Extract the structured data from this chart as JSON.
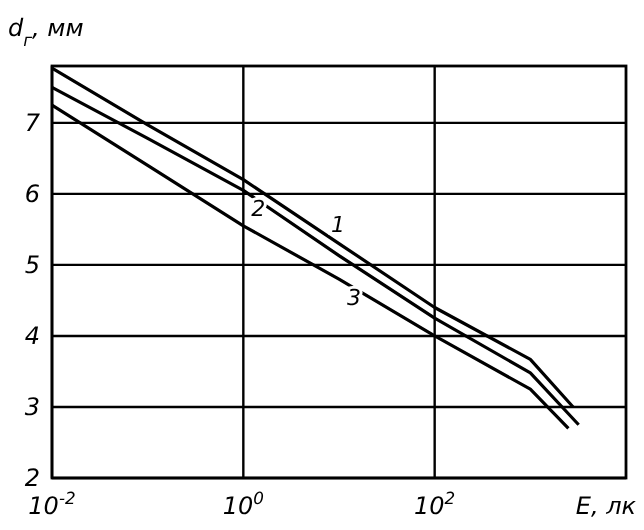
{
  "chart_data": {
    "type": "line",
    "xlabel": "E, лк",
    "ylabel": "d$_{г}$, мм",
    "log": "x",
    "grid": true,
    "marker": "none",
    "line_style": "solid",
    "xlim": [
      0.01,
      10000
    ],
    "xticks": [
      {
        "value": 0.01,
        "label": "10$^{-2}$"
      },
      {
        "value": 1,
        "label": "10$^{0}$"
      },
      {
        "value": 100,
        "label": "10$^{2}$"
      }
    ],
    "ylim": [
      2,
      7.8
    ],
    "yticks": [
      2,
      3,
      4,
      5,
      6,
      7
    ],
    "series": [
      {
        "name": "1",
        "color": "#000000",
        "x": [
          0.01,
          0.1,
          1,
          10,
          100,
          1000,
          2800
        ],
        "values": [
          7.77,
          6.97,
          6.2,
          5.3,
          4.4,
          3.67,
          3.0
        ]
      },
      {
        "name": "2",
        "color": "#000000",
        "x": [
          0.01,
          0.1,
          1,
          10,
          100,
          1000,
          3200
        ],
        "values": [
          7.5,
          6.78,
          6.05,
          5.13,
          4.25,
          3.48,
          2.75
        ]
      },
      {
        "name": "3",
        "color": "#000000",
        "x": [
          0.01,
          0.1,
          1,
          10,
          100,
          1000,
          2500
        ],
        "values": [
          7.25,
          6.4,
          5.55,
          4.8,
          4.0,
          3.25,
          2.7
        ]
      }
    ]
  }
}
